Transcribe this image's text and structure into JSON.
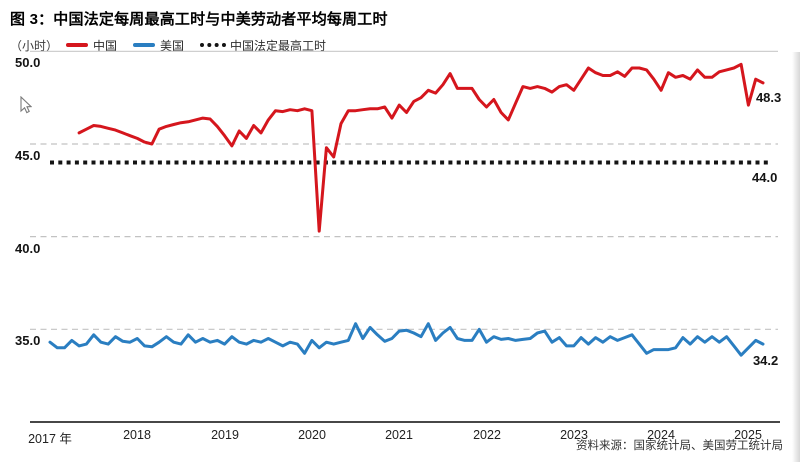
{
  "header": {
    "title": "图 3：中国法定每周最高工时与中美劳动者平均每周工时"
  },
  "legend": {
    "unit": "（小时）",
    "items": [
      {
        "label": "中国",
        "color": "#d5161d",
        "style": "solid"
      },
      {
        "label": "美国",
        "color": "#2a7ec1",
        "style": "solid"
      },
      {
        "label": "中国法定最高工时",
        "color": "#141414",
        "style": "dotted"
      }
    ]
  },
  "footer": {
    "source": "资料来源：国家统计局、美国劳工统计局"
  },
  "chart_data": {
    "type": "line",
    "title": "图 3：中国法定每周最高工时与中美劳动者平均每周工时",
    "unit_label": "（小时）",
    "xlabel": "",
    "ylabel": "小时",
    "ylim": [
      30,
      50
    ],
    "grid": "horizontal-dashed",
    "legend_position": "top",
    "x_ticks": [
      {
        "label": "2017 年",
        "year": 2017
      },
      {
        "label": "2018",
        "year": 2018
      },
      {
        "label": "2019",
        "year": 2019
      },
      {
        "label": "2020",
        "year": 2020
      },
      {
        "label": "2021",
        "year": 2021
      },
      {
        "label": "2022",
        "year": 2022
      },
      {
        "label": "2023",
        "year": 2023
      },
      {
        "label": "2024",
        "year": 2024
      },
      {
        "label": "2025",
        "year": 2025
      }
    ],
    "y_gridlines": [
      {
        "value": 50,
        "label": "50.0",
        "style": "solid"
      },
      {
        "value": 45,
        "label": "45.0",
        "style": "dashed"
      },
      {
        "value": 40,
        "label": "40.0",
        "style": "dashed"
      },
      {
        "value": 35,
        "label": "35.0",
        "style": "dashed"
      }
    ],
    "reference_line": {
      "name": "中国法定最高工时",
      "value": 44.0,
      "annotation": "44.0",
      "color": "#141414",
      "style": "dotted"
    },
    "series": [
      {
        "name": "中国",
        "color": "#d5161d",
        "start_year": 2017,
        "start_month": 5,
        "end_label": "48.3",
        "values": [
          45.6,
          45.8,
          46.0,
          45.95,
          45.85,
          45.75,
          45.6,
          45.45,
          45.3,
          45.1,
          45.0,
          45.8,
          45.95,
          46.05,
          46.15,
          46.2,
          46.3,
          46.4,
          46.35,
          45.95,
          45.45,
          44.9,
          45.7,
          45.3,
          46.0,
          45.6,
          46.3,
          46.8,
          46.75,
          46.85,
          46.8,
          46.9,
          46.8,
          40.3,
          44.8,
          44.3,
          46.1,
          46.8,
          46.8,
          46.85,
          46.9,
          46.9,
          47.0,
          46.4,
          47.1,
          46.7,
          47.3,
          47.5,
          47.9,
          47.75,
          48.2,
          48.8,
          48.0,
          48.0,
          48.0,
          47.4,
          47.0,
          47.4,
          46.7,
          46.3,
          47.2,
          48.1,
          48.0,
          48.1,
          48.0,
          47.8,
          48.1,
          48.2,
          47.9,
          48.5,
          49.1,
          48.85,
          48.7,
          48.7,
          48.9,
          48.65,
          49.1,
          49.1,
          49.0,
          48.5,
          47.9,
          48.85,
          48.6,
          48.7,
          48.5,
          49.0,
          48.6,
          48.6,
          48.9,
          49.0,
          49.1,
          49.3,
          47.1,
          48.5,
          48.3
        ]
      },
      {
        "name": "美国",
        "color": "#2a7ec1",
        "start_year": 2017,
        "start_month": 1,
        "end_label": "34.2",
        "values": [
          34.3,
          34.0,
          34.0,
          34.4,
          34.1,
          34.2,
          34.7,
          34.3,
          34.2,
          34.6,
          34.35,
          34.3,
          34.5,
          34.1,
          34.05,
          34.3,
          34.6,
          34.3,
          34.2,
          34.7,
          34.3,
          34.5,
          34.3,
          34.4,
          34.2,
          34.6,
          34.3,
          34.2,
          34.4,
          34.3,
          34.5,
          34.3,
          34.1,
          34.3,
          34.2,
          33.7,
          34.4,
          34.0,
          34.3,
          34.2,
          34.3,
          34.4,
          35.3,
          34.5,
          35.1,
          34.7,
          34.35,
          34.5,
          34.9,
          34.95,
          34.8,
          34.6,
          35.3,
          34.4,
          34.8,
          35.1,
          34.5,
          34.4,
          34.4,
          35.0,
          34.3,
          34.6,
          34.45,
          34.5,
          34.4,
          34.45,
          34.5,
          34.8,
          34.9,
          34.3,
          34.55,
          34.1,
          34.1,
          34.55,
          34.2,
          34.55,
          34.3,
          34.6,
          34.4,
          34.55,
          34.7,
          34.2,
          33.7,
          33.9,
          33.9,
          33.9,
          34.0,
          34.55,
          34.2,
          34.6,
          34.3,
          34.6,
          34.3,
          34.6,
          34.1,
          33.6,
          34.0,
          34.4,
          34.2
        ]
      }
    ]
  }
}
